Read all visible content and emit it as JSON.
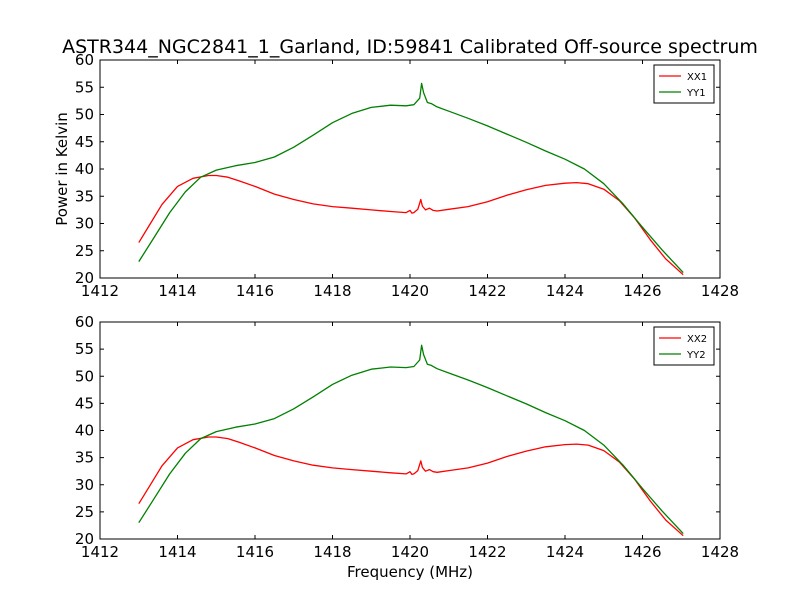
{
  "chart_data": {
    "title": "ASTR344_NGC2841_1_Garland, ID:59841 Calibrated Off-source spectrum",
    "xlabel": "Frequency (MHz)",
    "ylabel": "Power in Kelvin",
    "colors": {
      "XX": "#ff0000",
      "YY": "#008000"
    },
    "panels": [
      {
        "type": "line",
        "legend_position": "top-right",
        "xlim": [
          1412,
          1428
        ],
        "ylim": [
          20,
          60
        ],
        "xticks": [
          1412,
          1414,
          1416,
          1418,
          1420,
          1422,
          1424,
          1426,
          1428
        ],
        "yticks": [
          20,
          25,
          30,
          35,
          40,
          45,
          50,
          55,
          60
        ],
        "series": [
          {
            "name": "XX1",
            "color": "#ff0000",
            "x": [
              1413.0,
              1413.3,
              1413.6,
              1414.0,
              1414.4,
              1414.8,
              1415.0,
              1415.3,
              1415.6,
              1416.0,
              1416.5,
              1417.0,
              1417.5,
              1418.0,
              1418.5,
              1419.0,
              1419.5,
              1419.9,
              1420.0,
              1420.05,
              1420.1,
              1420.2,
              1420.28,
              1420.32,
              1420.4,
              1420.5,
              1420.6,
              1420.7,
              1421.0,
              1421.5,
              1422.0,
              1422.5,
              1423.0,
              1423.5,
              1424.0,
              1424.3,
              1424.6,
              1425.0,
              1425.4,
              1425.8,
              1426.2,
              1426.6,
              1427.05
            ],
            "values": [
              26.5,
              30.0,
              33.5,
              36.8,
              38.3,
              38.8,
              38.8,
              38.5,
              37.8,
              36.8,
              35.4,
              34.4,
              33.6,
              33.1,
              32.8,
              32.5,
              32.2,
              32.0,
              32.4,
              31.9,
              32.0,
              32.6,
              34.4,
              33.2,
              32.5,
              32.8,
              32.4,
              32.3,
              32.6,
              33.1,
              34.0,
              35.2,
              36.2,
              37.0,
              37.4,
              37.5,
              37.3,
              36.3,
              34.2,
              31.0,
              27.0,
              23.5,
              20.6
            ]
          },
          {
            "name": "YY1",
            "color": "#008000",
            "x": [
              1413.0,
              1413.4,
              1413.8,
              1414.2,
              1414.6,
              1415.0,
              1415.5,
              1416.0,
              1416.5,
              1417.0,
              1417.5,
              1418.0,
              1418.5,
              1419.0,
              1419.5,
              1419.9,
              1420.1,
              1420.25,
              1420.3,
              1420.35,
              1420.45,
              1420.55,
              1420.7,
              1421.0,
              1421.5,
              1422.0,
              1422.5,
              1423.0,
              1423.5,
              1424.0,
              1424.5,
              1425.0,
              1425.5,
              1426.0,
              1426.5,
              1427.05
            ],
            "values": [
              23.0,
              27.5,
              32.0,
              35.8,
              38.5,
              39.8,
              40.6,
              41.2,
              42.2,
              44.0,
              46.2,
              48.5,
              50.2,
              51.3,
              51.7,
              51.6,
              51.8,
              53.0,
              55.7,
              54.0,
              52.2,
              52.0,
              51.4,
              50.6,
              49.3,
              47.9,
              46.4,
              44.9,
              43.3,
              41.8,
              40.0,
              37.3,
              33.6,
              29.3,
              25.2,
              21.0
            ]
          }
        ]
      },
      {
        "type": "line",
        "legend_position": "top-right",
        "xlim": [
          1412,
          1428
        ],
        "ylim": [
          20,
          60
        ],
        "xticks": [
          1412,
          1414,
          1416,
          1418,
          1420,
          1422,
          1424,
          1426,
          1428
        ],
        "yticks": [
          20,
          25,
          30,
          35,
          40,
          45,
          50,
          55,
          60
        ],
        "series": [
          {
            "name": "XX2",
            "color": "#ff0000",
            "x": [
              1413.0,
              1413.3,
              1413.6,
              1414.0,
              1414.4,
              1414.8,
              1415.0,
              1415.3,
              1415.6,
              1416.0,
              1416.5,
              1417.0,
              1417.5,
              1418.0,
              1418.5,
              1419.0,
              1419.5,
              1419.9,
              1420.0,
              1420.05,
              1420.1,
              1420.2,
              1420.28,
              1420.32,
              1420.4,
              1420.5,
              1420.6,
              1420.7,
              1421.0,
              1421.5,
              1422.0,
              1422.5,
              1423.0,
              1423.5,
              1424.0,
              1424.3,
              1424.6,
              1425.0,
              1425.4,
              1425.8,
              1426.2,
              1426.6,
              1427.05
            ],
            "values": [
              26.5,
              30.0,
              33.5,
              36.8,
              38.3,
              38.8,
              38.8,
              38.5,
              37.8,
              36.8,
              35.4,
              34.4,
              33.6,
              33.1,
              32.8,
              32.5,
              32.2,
              32.0,
              32.4,
              31.9,
              32.0,
              32.6,
              34.4,
              33.2,
              32.5,
              32.8,
              32.4,
              32.3,
              32.6,
              33.1,
              34.0,
              35.2,
              36.2,
              37.0,
              37.4,
              37.5,
              37.3,
              36.3,
              34.2,
              31.0,
              27.0,
              23.5,
              20.6
            ]
          },
          {
            "name": "YY2",
            "color": "#008000",
            "x": [
              1413.0,
              1413.4,
              1413.8,
              1414.2,
              1414.6,
              1415.0,
              1415.5,
              1416.0,
              1416.5,
              1417.0,
              1417.5,
              1418.0,
              1418.5,
              1419.0,
              1419.5,
              1419.9,
              1420.1,
              1420.25,
              1420.3,
              1420.35,
              1420.45,
              1420.55,
              1420.7,
              1421.0,
              1421.5,
              1422.0,
              1422.5,
              1423.0,
              1423.5,
              1424.0,
              1424.5,
              1425.0,
              1425.5,
              1426.0,
              1426.5,
              1427.05
            ],
            "values": [
              23.0,
              27.5,
              32.0,
              35.8,
              38.5,
              39.8,
              40.6,
              41.2,
              42.2,
              44.0,
              46.2,
              48.5,
              50.2,
              51.3,
              51.7,
              51.6,
              51.8,
              53.0,
              55.7,
              54.0,
              52.2,
              52.0,
              51.4,
              50.6,
              49.3,
              47.9,
              46.4,
              44.9,
              43.3,
              41.8,
              40.0,
              37.3,
              33.6,
              29.3,
              25.2,
              21.0
            ]
          }
        ]
      }
    ]
  }
}
